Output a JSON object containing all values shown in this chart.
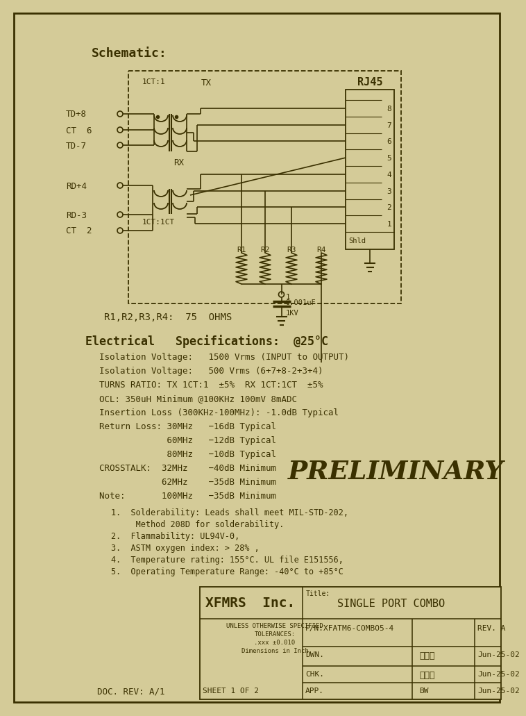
{
  "bg_color": "#d4cb98",
  "line_color": "#3a3000",
  "specs_lines": [
    [
      "Isolation Voltage:   1500 Vrms (INPUT to OUTPUT)",
      9.0
    ],
    [
      "Isolation Voltage:   500 Vrms (6+7+8-2+3+4)",
      9.0
    ],
    [
      "TURNS RATIO: TX 1CT:1  ±5%  RX 1CT:1CT  ±5%",
      9.0
    ],
    [
      "OCL: 350uH Minimum @100KHz 100mV 8mADC",
      9.0
    ],
    [
      "Insertion Loss (300KHz-100MHz): -1.0dB Typical",
      9.0
    ],
    [
      "Return Loss: 30MHz   −16dB Typical",
      9.0
    ],
    [
      "             60MHz   −12dB Typical",
      9.0
    ],
    [
      "             80MHz   −10dB Typical",
      9.0
    ],
    [
      "CROSSTALK:  32MHz    −40dB Minimum",
      9.0
    ],
    [
      "            62MHz    −35dB Minimum",
      9.0
    ],
    [
      "Note:       100MHz   −35dB Minimum",
      9.0
    ]
  ],
  "notes_lines": [
    "1.  Solderability: Leads shall meet MIL-STD-202,",
    "     Method 208D for solderability.",
    "2.  Flammability: UL94V-0,",
    "3.  ASTM oxygen index: > 28% ,",
    "4.  Temperature rating: 155°C. UL file E151556,",
    "5.  Operating Temperature Range: -40°C to +85°C"
  ],
  "company": "XFMRS  Inc.",
  "title_value": "SINGLE PORT COMBO",
  "pn_value": "P/N:XFATM6-COMBO5-4",
  "rev_value": "REV. A",
  "unless_lines": [
    "UNLESS OTHERWISE SPECIFIED",
    "TOLERANCES:",
    ".xxx ±0.010",
    "Dimensions in Inch"
  ],
  "sheet_text": "SHEET 1 OF 2",
  "dwn_value": "李小锤",
  "chk_value": "废玉帧",
  "app_value": "BW",
  "date_value": "Jun-25-02",
  "doc_rev": "DOC. REV: A/1",
  "r_label": "R1,R2,R3,R4:  75  OHMS"
}
